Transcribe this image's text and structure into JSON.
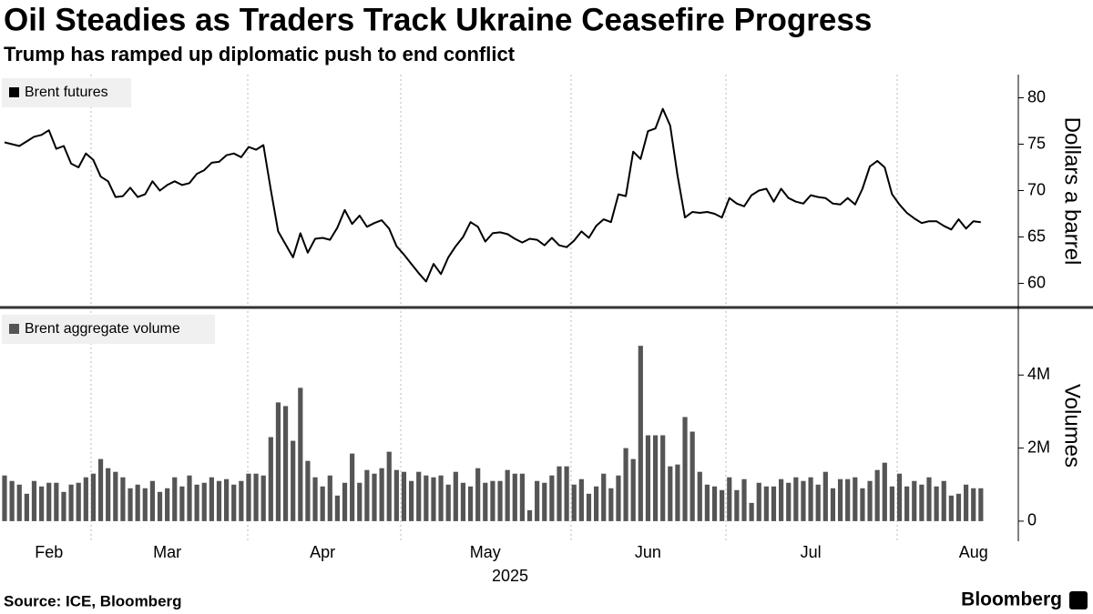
{
  "chart_data": [
    {
      "type": "line",
      "title": "Oil Steadies as Traders Track Ukraine Ceasefire Progress",
      "subtitle": "Trump has ramped up diplomatic push to end conflict",
      "y_label": "Dollars a barrel",
      "series": [
        {
          "name": "Brent futures",
          "color": "#000000",
          "values": [
            75.2,
            75.0,
            74.8,
            75.3,
            75.8,
            76.0,
            76.5,
            74.5,
            74.8,
            72.9,
            72.5,
            74.0,
            73.3,
            71.5,
            71.0,
            69.3,
            69.4,
            70.3,
            69.3,
            69.6,
            71.0,
            70.0,
            70.6,
            71.0,
            70.6,
            70.8,
            71.8,
            72.2,
            73.0,
            73.1,
            73.8,
            74.0,
            73.6,
            74.7,
            74.4,
            74.9,
            70.1,
            65.6,
            64.2,
            62.8,
            65.4,
            63.3,
            64.8,
            64.9,
            64.7,
            66.0,
            67.9,
            66.4,
            67.3,
            66.1,
            66.5,
            66.8,
            65.9,
            64.0,
            63.1,
            62.1,
            61.1,
            60.2,
            62.1,
            61.0,
            62.8,
            64.0,
            65.0,
            66.6,
            66.1,
            64.5,
            65.4,
            65.5,
            65.3,
            64.8,
            64.4,
            64.8,
            64.7,
            64.1,
            64.9,
            64.1,
            63.9,
            64.6,
            65.6,
            64.9,
            66.2,
            66.9,
            66.6,
            69.6,
            69.4,
            74.2,
            73.4,
            76.4,
            76.7,
            78.8,
            77.0,
            71.6,
            67.1,
            67.7,
            67.6,
            67.7,
            67.5,
            67.1,
            69.2,
            68.6,
            68.3,
            69.5,
            70.0,
            70.2,
            68.8,
            70.2,
            69.2,
            68.8,
            68.6,
            69.5,
            69.3,
            69.2,
            68.6,
            68.5,
            69.2,
            68.5,
            70.2,
            72.6,
            73.2,
            72.5,
            69.6,
            68.5,
            67.6,
            67.0,
            66.5,
            66.7,
            66.7,
            66.2,
            65.8,
            66.9,
            65.9,
            66.7,
            66.6
          ]
        }
      ],
      "ylim": [
        57.5,
        82.5
      ],
      "yticks": [
        60,
        65,
        70,
        75,
        80
      ]
    },
    {
      "type": "bar",
      "y_label": "Volumes",
      "x_label": "2025",
      "categories": [
        null,
        null,
        null,
        null,
        null,
        null,
        "Feb",
        null,
        null,
        null,
        null,
        null,
        null,
        null,
        null,
        null,
        null,
        null,
        null,
        null,
        null,
        null,
        "Mar",
        null,
        null,
        null,
        null,
        null,
        null,
        null,
        null,
        null,
        null,
        null,
        null,
        null,
        null,
        null,
        null,
        null,
        null,
        null,
        null,
        "Apr",
        null,
        null,
        null,
        null,
        null,
        null,
        null,
        null,
        null,
        null,
        null,
        null,
        null,
        null,
        null,
        null,
        null,
        null,
        null,
        null,
        null,
        "May",
        null,
        null,
        null,
        null,
        null,
        null,
        null,
        null,
        null,
        null,
        null,
        null,
        null,
        null,
        null,
        null,
        null,
        null,
        null,
        null,
        null,
        "Jun",
        null,
        null,
        null,
        null,
        null,
        null,
        null,
        null,
        null,
        null,
        null,
        null,
        null,
        null,
        null,
        null,
        null,
        null,
        null,
        null,
        null,
        "Jul",
        null,
        null,
        null,
        null,
        null,
        null,
        null,
        null,
        null,
        null,
        null,
        null,
        null,
        null,
        null,
        null,
        null,
        null,
        null,
        null,
        null,
        "Aug",
        null
      ],
      "series": [
        {
          "name": "Brent aggregate volume",
          "color": "#555555",
          "values": [
            1250000,
            1100000,
            1000000,
            750000,
            1100000,
            950000,
            1050000,
            1050000,
            800000,
            1000000,
            1050000,
            1200000,
            1300000,
            1700000,
            1450000,
            1350000,
            1200000,
            900000,
            1000000,
            900000,
            1100000,
            800000,
            900000,
            1200000,
            950000,
            1250000,
            1000000,
            1050000,
            1200000,
            1100000,
            1150000,
            1000000,
            1100000,
            1300000,
            1300000,
            1250000,
            2300000,
            3250000,
            3150000,
            2200000,
            3650000,
            1650000,
            1200000,
            950000,
            1250000,
            700000,
            1050000,
            1850000,
            1050000,
            1400000,
            1300000,
            1450000,
            1900000,
            1400000,
            1350000,
            1100000,
            1350000,
            1250000,
            1200000,
            1250000,
            1000000,
            1350000,
            1050000,
            950000,
            1450000,
            1050000,
            1100000,
            1100000,
            1400000,
            1300000,
            1300000,
            300000,
            1100000,
            1050000,
            1250000,
            1500000,
            1500000,
            1000000,
            1150000,
            750000,
            950000,
            1300000,
            900000,
            1250000,
            2000000,
            1700000,
            4800000,
            2350000,
            2350000,
            2350000,
            1500000,
            1550000,
            2850000,
            2450000,
            1350000,
            1000000,
            950000,
            850000,
            1200000,
            850000,
            1150000,
            500000,
            1050000,
            950000,
            950000,
            1150000,
            1050000,
            1200000,
            1100000,
            1200000,
            1000000,
            1350000,
            900000,
            1150000,
            1150000,
            1200000,
            900000,
            1100000,
            1400000,
            1600000,
            950000,
            1300000,
            950000,
            1100000,
            1000000,
            1200000,
            950000,
            1100000,
            700000,
            750000,
            1000000,
            900000,
            900000
          ]
        }
      ],
      "ylim": [
        -550000,
        5800000
      ],
      "yticks": [
        0,
        {
          "value": 2000000,
          "label": "2M"
        },
        {
          "value": 4000000,
          "label": "4M"
        }
      ]
    }
  ],
  "source": "Source: ICE, Bloomberg",
  "logo": "Bloomberg"
}
